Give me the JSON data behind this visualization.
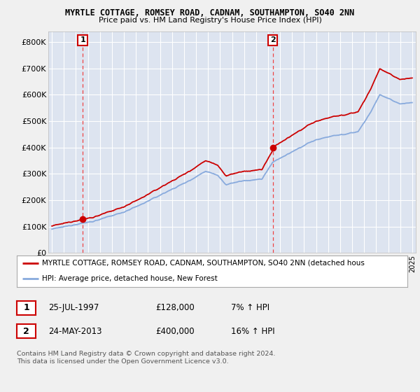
{
  "title1": "MYRTLE COTTAGE, ROMSEY ROAD, CADNAM, SOUTHAMPTON, SO40 2NN",
  "title2": "Price paid vs. HM Land Registry's House Price Index (HPI)",
  "fig_bg_color": "#f0f0f0",
  "plot_bg_color": "#dde4f0",
  "grid_color": "#ffffff",
  "sale1_date": 1997.56,
  "sale1_price": 128000,
  "sale2_date": 2013.39,
  "sale2_price": 400000,
  "legend_line1": "MYRTLE COTTAGE, ROMSEY ROAD, CADNAM, SOUTHAMPTON, SO40 2NN (detached hous",
  "legend_line2": "HPI: Average price, detached house, New Forest",
  "table_row1": [
    "1",
    "25-JUL-1997",
    "£128,000",
    "7% ↑ HPI"
  ],
  "table_row2": [
    "2",
    "24-MAY-2013",
    "£400,000",
    "16% ↑ HPI"
  ],
  "footer": "Contains HM Land Registry data © Crown copyright and database right 2024.\nThis data is licensed under the Open Government Licence v3.0.",
  "ylim": [
    0,
    840000
  ],
  "yticks": [
    0,
    100000,
    200000,
    300000,
    400000,
    500000,
    600000,
    700000,
    800000
  ],
  "ytick_labels": [
    "£0",
    "£100K",
    "£200K",
    "£300K",
    "£400K",
    "£500K",
    "£600K",
    "£700K",
    "£800K"
  ],
  "red_line_color": "#cc0000",
  "blue_line_color": "#88aadd",
  "dashed_line_color": "#ee4444",
  "marker_color": "#cc0000",
  "xlim_min": 1994.7,
  "xlim_max": 2025.3
}
